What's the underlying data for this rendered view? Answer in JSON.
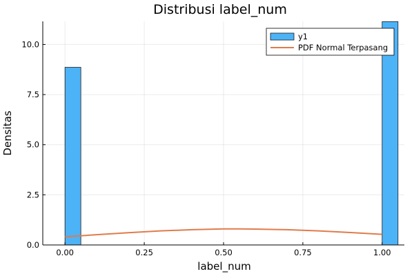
{
  "chart_data": {
    "type": "bar",
    "title": "Distribusi label_num",
    "xlabel": "label_num",
    "ylabel": "Densitas",
    "xlim": [
      -0.07,
      1.07
    ],
    "ylim": [
      0,
      11.15
    ],
    "xticks": [
      0.0,
      0.25,
      0.5,
      0.75,
      1.0
    ],
    "xtick_labels": [
      "0.00",
      "0.25",
      "0.50",
      "0.75",
      "1.00"
    ],
    "yticks": [
      0.0,
      2.5,
      5.0,
      7.5,
      10.0
    ],
    "ytick_labels": [
      "0.0",
      "2.5",
      "5.0",
      "7.5",
      "10.0"
    ],
    "grid": true,
    "legend_position": "top-right",
    "bar_width": 0.05,
    "series": [
      {
        "name": "y1",
        "kind": "histogram",
        "color": "#4db3f7",
        "bins": [
          {
            "x0": 0.0,
            "x1": 0.05,
            "value": 8.86
          },
          {
            "x0": 1.0,
            "x1": 1.05,
            "value": 11.14
          }
        ]
      },
      {
        "name": "PDF Normal Terpasang",
        "kind": "line",
        "color": "#e07b4a",
        "x": [
          0.0,
          0.1,
          0.2,
          0.3,
          0.4,
          0.5,
          0.55,
          0.6,
          0.7,
          0.8,
          0.9,
          1.0
        ],
        "y": [
          0.41,
          0.51,
          0.61,
          0.7,
          0.76,
          0.8,
          0.8,
          0.79,
          0.76,
          0.7,
          0.62,
          0.53
        ]
      }
    ]
  }
}
